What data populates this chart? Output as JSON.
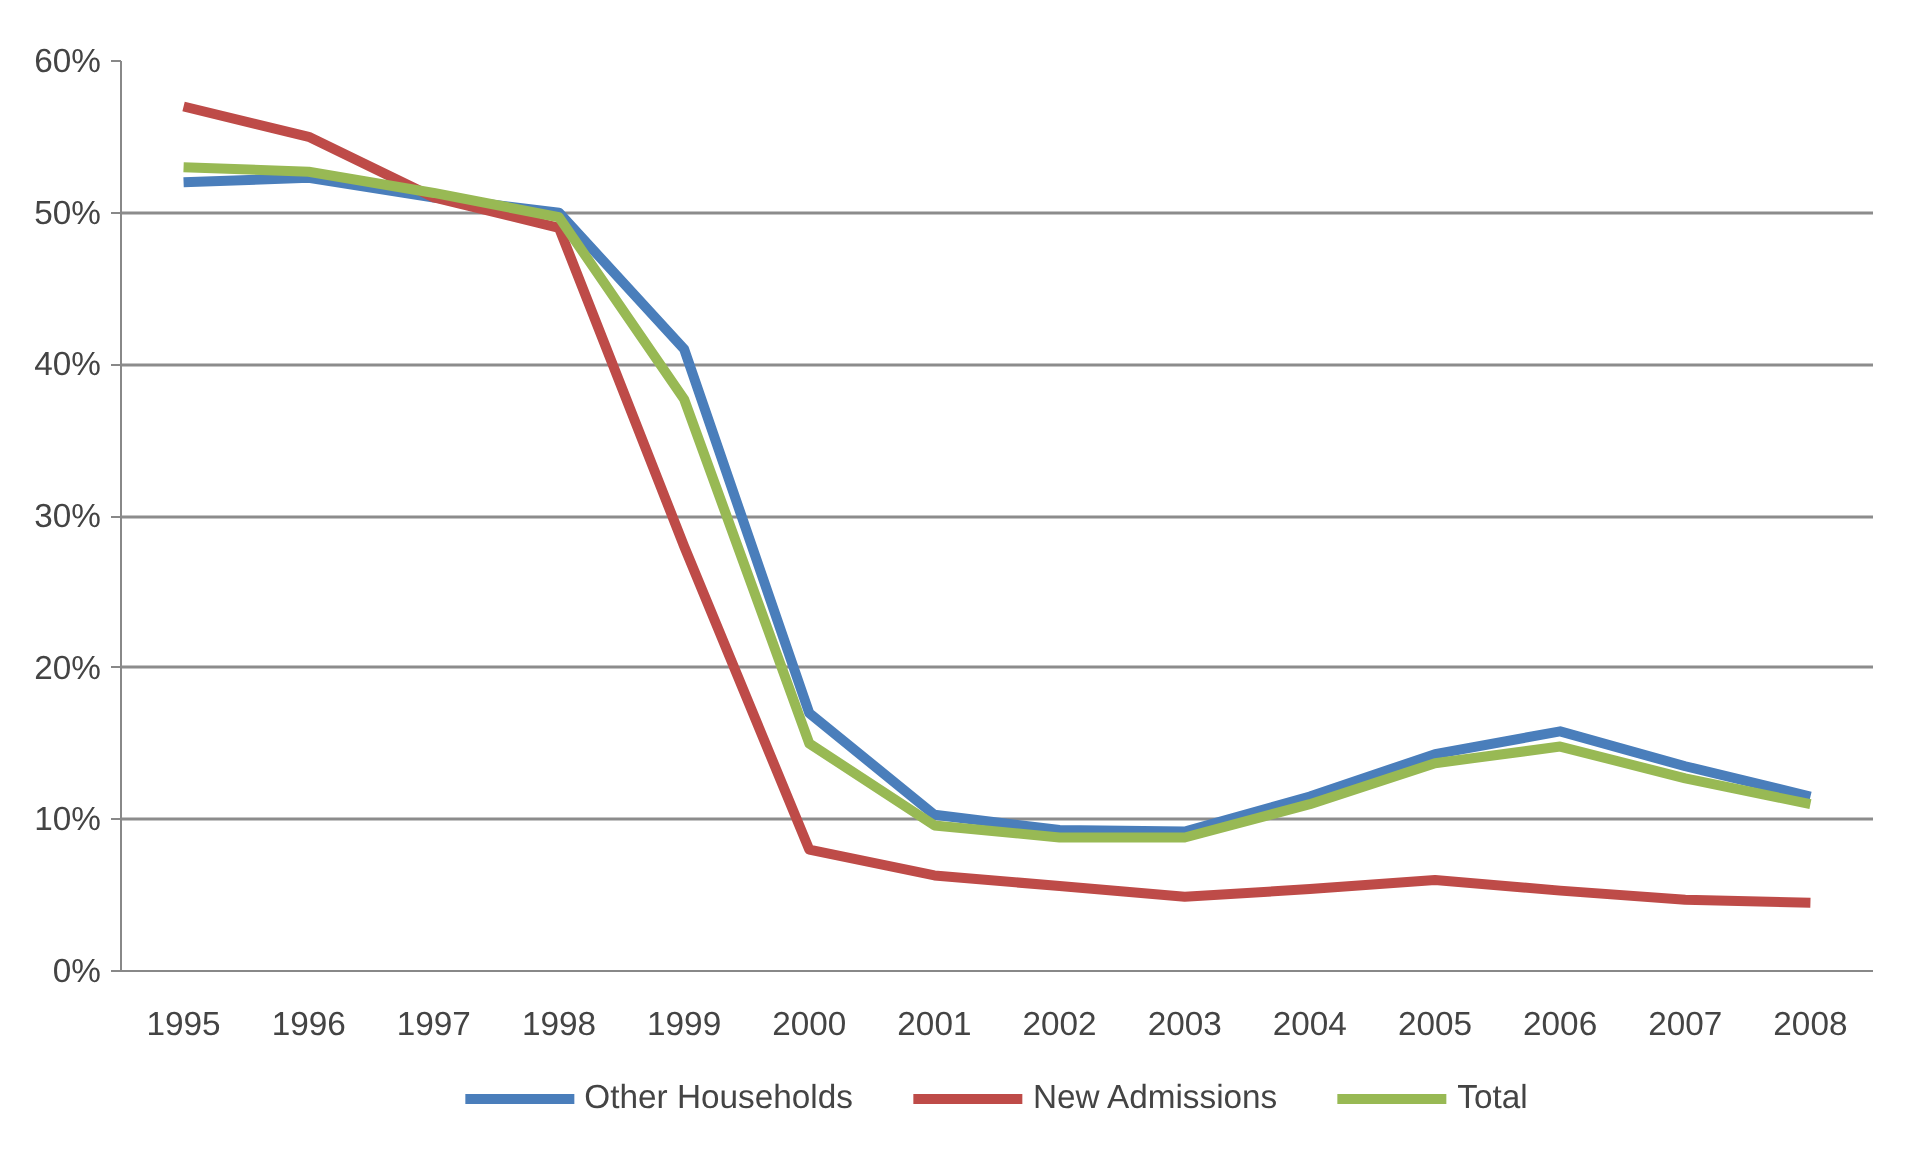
{
  "chart_data": {
    "type": "line",
    "categories": [
      "1995",
      "1996",
      "1997",
      "1998",
      "1999",
      "2000",
      "2001",
      "2002",
      "2003",
      "2004",
      "2005",
      "2006",
      "2007",
      "2008"
    ],
    "series": [
      {
        "name": "Other Households",
        "color": "#4a7ebb",
        "values": [
          52,
          52.3,
          51,
          50,
          41,
          17,
          10.3,
          9.3,
          9.2,
          11.5,
          14.3,
          15.8,
          13.5,
          11.5
        ]
      },
      {
        "name": "New Admissions",
        "color": "#be4b48",
        "values": [
          57,
          55,
          51,
          49,
          28,
          8,
          6.3,
          5.6,
          4.9,
          5.4,
          6,
          5.3,
          4.7,
          4.5
        ]
      },
      {
        "name": "Total",
        "color": "#98b954",
        "values": [
          53,
          52.7,
          51.3,
          49.7,
          37.7,
          15,
          9.6,
          8.8,
          8.8,
          11,
          13.7,
          14.8,
          12.7,
          11
        ]
      }
    ],
    "ylim": [
      0,
      60
    ],
    "yticks": [
      {
        "value": 0,
        "label": "0%"
      },
      {
        "value": 10,
        "label": "10%"
      },
      {
        "value": 20,
        "label": "20%"
      },
      {
        "value": 30,
        "label": "30%"
      },
      {
        "value": 40,
        "label": "40%"
      },
      {
        "value": 50,
        "label": "50%"
      },
      {
        "value": 60,
        "label": "60%"
      }
    ],
    "grid": "y",
    "legend": "bottom",
    "marker": "none",
    "line_style": "solid"
  }
}
